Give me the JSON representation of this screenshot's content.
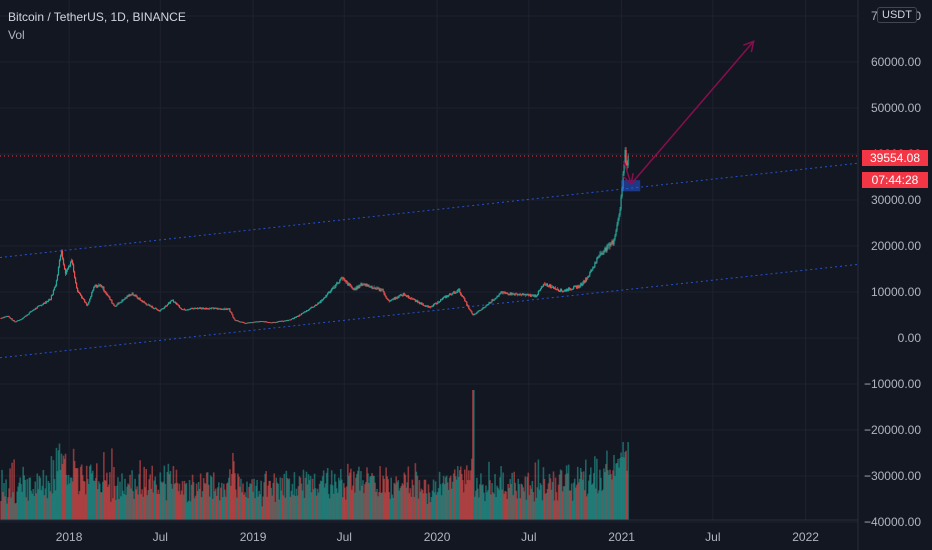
{
  "header": {
    "symbol": "Bitcoin / TetherUS, 1D, BINANCE",
    "volume_label": "Vol",
    "currency": "USDT"
  },
  "price_tags": {
    "last_price": "39554.08",
    "countdown": "07:44:28"
  },
  "colors": {
    "background": "#131722",
    "up": "#26a69a",
    "down": "#ef5350",
    "channel": "#2962ff",
    "arrow": "#880e4f",
    "last_price_line": "#f23645",
    "grid": "#1e222d",
    "axis_text": "#b2b5be"
  },
  "chart_data": {
    "type": "line",
    "title": "Bitcoin / TetherUS, 1D, BINANCE",
    "xlabel": "",
    "ylabel": "",
    "grid": true,
    "x_axis": {
      "range": [
        "2017-08-17",
        "2022-04-15"
      ],
      "ticks": [
        {
          "label": "2018",
          "date": "2018-01-01"
        },
        {
          "label": "Jul",
          "date": "2018-07-01"
        },
        {
          "label": "2019",
          "date": "2019-01-01"
        },
        {
          "label": "Jul",
          "date": "2019-07-01"
        },
        {
          "label": "2020",
          "date": "2020-01-01"
        },
        {
          "label": "Jul",
          "date": "2020-07-01"
        },
        {
          "label": "2021",
          "date": "2021-01-01"
        },
        {
          "label": "Jul",
          "date": "2021-07-01"
        },
        {
          "label": "2022",
          "date": "2022-01-01"
        }
      ]
    },
    "y_axis": {
      "range": [
        -40000,
        70000
      ],
      "ticks": [
        -40000,
        -30000,
        -20000,
        -10000,
        0,
        10000,
        20000,
        30000,
        40000,
        50000,
        60000,
        70000
      ],
      "tick_labels": [
        "−40000.00",
        "−30000.00",
        "−20000.00",
        "−10000.00",
        "0.00",
        "10000.00",
        "20000.00",
        "30000.00",
        "40000.00",
        "50000.00",
        "60000.00",
        "70000.00"
      ]
    },
    "series": [
      {
        "type": "line",
        "points": [
          [
            "2017-08-17",
            4300
          ],
          [
            "2017-09-01",
            4800
          ],
          [
            "2017-09-15",
            3500
          ],
          [
            "2017-10-01",
            4300
          ],
          [
            "2017-10-20",
            6000
          ],
          [
            "2017-11-08",
            7300
          ],
          [
            "2017-11-25",
            8500
          ],
          [
            "2017-12-05",
            11500
          ],
          [
            "2017-12-17",
            19200
          ],
          [
            "2017-12-24",
            14000
          ],
          [
            "2018-01-06",
            17000
          ],
          [
            "2018-01-17",
            10500
          ],
          [
            "2018-02-06",
            6900
          ],
          [
            "2018-02-20",
            11200
          ],
          [
            "2018-03-05",
            11500
          ],
          [
            "2018-04-01",
            6900
          ],
          [
            "2018-05-05",
            9700
          ],
          [
            "2018-06-01",
            7500
          ],
          [
            "2018-06-29",
            5900
          ],
          [
            "2018-07-25",
            8200
          ],
          [
            "2018-08-14",
            6200
          ],
          [
            "2018-09-15",
            6500
          ],
          [
            "2018-10-15",
            6400
          ],
          [
            "2018-11-14",
            6300
          ],
          [
            "2018-11-25",
            4000
          ],
          [
            "2018-12-15",
            3200
          ],
          [
            "2019-01-15",
            3600
          ],
          [
            "2019-02-08",
            3400
          ],
          [
            "2019-03-15",
            3900
          ],
          [
            "2019-04-02",
            4900
          ],
          [
            "2019-05-15",
            7900
          ],
          [
            "2019-06-26",
            13000
          ],
          [
            "2019-07-20",
            10500
          ],
          [
            "2019-08-06",
            11800
          ],
          [
            "2019-09-15",
            10300
          ],
          [
            "2019-09-26",
            8000
          ],
          [
            "2019-10-26",
            9500
          ],
          [
            "2019-11-20",
            8000
          ],
          [
            "2019-12-18",
            6600
          ],
          [
            "2020-01-15",
            8800
          ],
          [
            "2020-02-13",
            10400
          ],
          [
            "2020-03-12",
            4900
          ],
          [
            "2020-03-31",
            6400
          ],
          [
            "2020-05-07",
            9800
          ],
          [
            "2020-06-15",
            9400
          ],
          [
            "2020-07-15",
            9200
          ],
          [
            "2020-08-01",
            11800
          ],
          [
            "2020-09-05",
            10200
          ],
          [
            "2020-10-10",
            11300
          ],
          [
            "2020-10-25",
            13100
          ],
          [
            "2020-11-20",
            18500
          ],
          [
            "2020-12-01",
            19300
          ],
          [
            "2020-12-16",
            21000
          ],
          [
            "2020-12-27",
            27000
          ],
          [
            "2021-01-02",
            32200
          ],
          [
            "2021-01-08",
            41000
          ],
          [
            "2021-01-11",
            35500
          ],
          [
            "2021-01-14",
            39554
          ]
        ]
      },
      {
        "type": "volume_bars",
        "description": "daily volume histogram, colored by up/down day"
      }
    ],
    "drawings": [
      {
        "type": "trend_line",
        "name": "channel-upper",
        "from": [
          "2017-08-17",
          17500
        ],
        "to": [
          "2022-04-15",
          38000
        ]
      },
      {
        "type": "trend_line",
        "name": "channel-lower",
        "from": [
          "2017-08-17",
          -4300
        ],
        "to": [
          "2022-04-15",
          16000
        ]
      },
      {
        "type": "horizontal_line",
        "name": "last-price",
        "value": 39554.08
      },
      {
        "type": "rectangle",
        "name": "support-zone",
        "from": [
          "2021-01-01",
          34200
        ],
        "to": [
          "2021-02-06",
          32000
        ]
      },
      {
        "type": "arrow",
        "name": "pullback-arrow",
        "from": [
          "2021-01-05",
          38500
        ],
        "to": [
          "2021-01-20",
          33500
        ]
      },
      {
        "type": "arrow",
        "name": "target-arrow",
        "from": [
          "2021-01-20",
          33500
        ],
        "to": [
          "2021-09-20",
          64500
        ]
      }
    ]
  }
}
